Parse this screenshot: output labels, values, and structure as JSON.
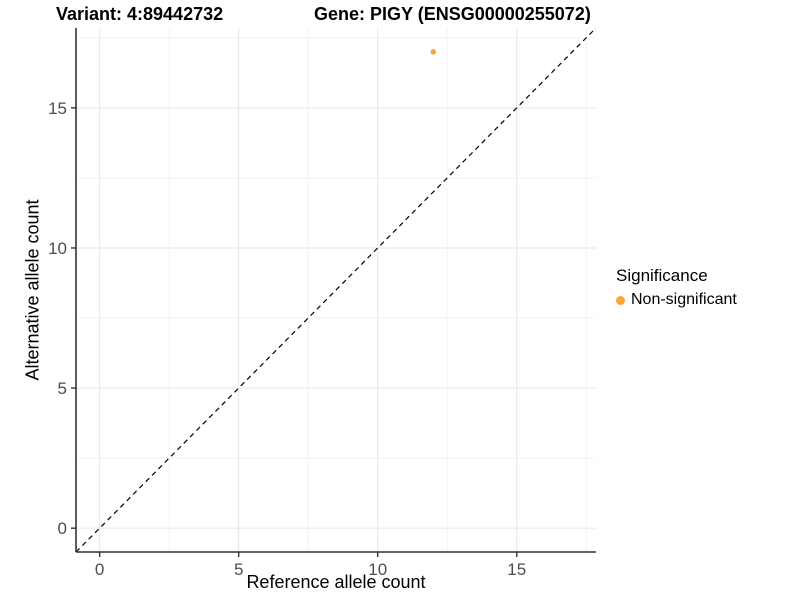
{
  "titles": {
    "left": "Variant: 4:89442732",
    "right": "Gene: PIGY (ENSG00000255072)"
  },
  "chart_data": {
    "type": "scatter",
    "xlabel": "Reference allele count",
    "ylabel": "Alternative allele count",
    "xlim": [
      -0.85,
      17.85
    ],
    "ylim": [
      -0.85,
      17.85
    ],
    "xticks": [
      0,
      5,
      10,
      15
    ],
    "yticks": [
      0,
      5,
      10,
      15
    ],
    "grid_minor_x": [
      2.5,
      7.5,
      12.5,
      17.5
    ],
    "grid_minor_y": [
      2.5,
      7.5,
      12.5,
      17.5
    ],
    "grid": true,
    "points": [
      {
        "x": 12,
        "y": 17,
        "series": "Non-significant"
      }
    ],
    "point_color": "#FAA43A",
    "point_radius": 2.8,
    "reference_line": {
      "slope": 1,
      "intercept": 0,
      "linetype": "dashed",
      "color": "#000000"
    },
    "colors": {
      "grid_major": "#E6E6E6",
      "grid_minor": "#F3F3F3",
      "axis_line": "#333333",
      "tick_label": "#4D4D4D"
    }
  },
  "legend": {
    "title": "Significance",
    "position": "right",
    "entries": [
      {
        "label": "Non-significant",
        "color": "#FAA43A"
      }
    ]
  }
}
